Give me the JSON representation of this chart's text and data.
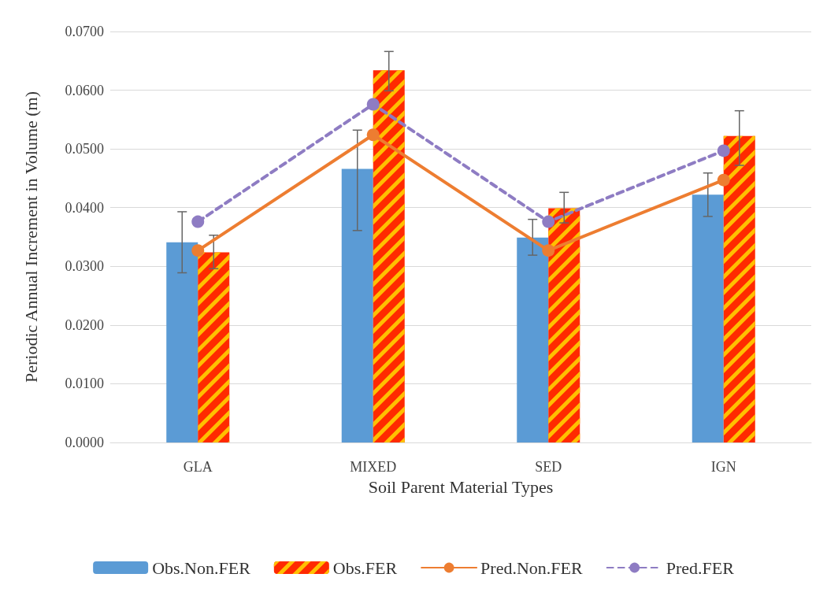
{
  "chart_data": {
    "type": "bar",
    "xlabel": "Soil Parent Material Types",
    "ylabel": "Periodic Annual Increment in Volume (m)",
    "categories": [
      "GLA",
      "MIXED",
      "SED",
      "IGN"
    ],
    "series": [
      {
        "name": "Obs.Non.FER",
        "color": "#5b9bd5",
        "values": [
          0.0341,
          0.0466,
          0.0349,
          0.0422
        ],
        "errors": [
          [
            0.0289,
            0.0393
          ],
          [
            0.0361,
            0.0532
          ],
          [
            0.0319,
            0.038
          ],
          [
            0.0385,
            0.0459
          ]
        ]
      },
      {
        "name": "Obs.FER",
        "color": "#ff2a00",
        "values": [
          0.0324,
          0.0634,
          0.0399,
          0.0522
        ],
        "errors": [
          [
            0.0296,
            0.0353
          ],
          [
            0.0599,
            0.0666
          ],
          [
            0.0374,
            0.0426
          ],
          [
            0.0472,
            0.0565
          ]
        ]
      },
      {
        "name": "Pred.Non.FER",
        "type": "line",
        "color": "#ed7d31",
        "values": [
          0.0327,
          0.0524,
          0.0327,
          0.0447
        ],
        "line_style": "solid"
      },
      {
        "name": "Pred.FER",
        "type": "line",
        "color": "#8e7cc3",
        "values": [
          0.0376,
          0.0576,
          0.0376,
          0.0497
        ],
        "line_style": "dashed"
      }
    ],
    "ylim": [
      0,
      0.07
    ],
    "yticks": [
      {
        "value": 0,
        "label": "0.0000"
      },
      {
        "value": 0.01,
        "label": "0.0100"
      },
      {
        "value": 0.02,
        "label": "0.0200"
      },
      {
        "value": 0.03,
        "label": "0.0300"
      },
      {
        "value": 0.04,
        "label": "0.0400"
      },
      {
        "value": 0.05,
        "label": "0.0500"
      },
      {
        "value": 0.06,
        "label": "0.0600"
      },
      {
        "value": 0.07,
        "label": "0.0700"
      }
    ],
    "grid": "y",
    "legend": "bottom",
    "marker": "circle"
  }
}
